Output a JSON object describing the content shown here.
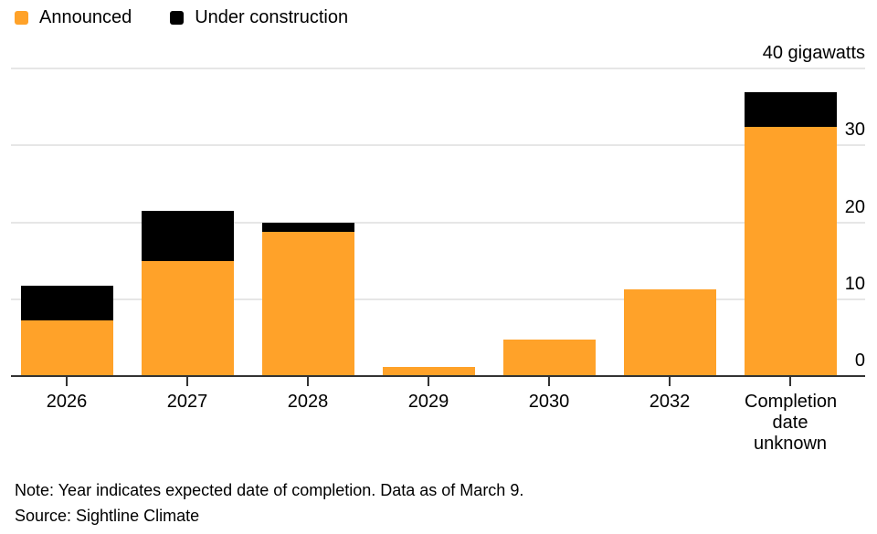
{
  "colors": {
    "announced": "#FFA229",
    "under_construction": "#000000",
    "gridline": "#E6E6E6",
    "axis_line": "#333333",
    "text": "#000000",
    "background": "#FFFFFF"
  },
  "chart_data": {
    "type": "bar",
    "stacked": true,
    "title": "",
    "xlabel": "",
    "ylabel": "gigawatts",
    "grid": true,
    "legend_position": "top-left",
    "categories": [
      "2026",
      "2027",
      "2028",
      "2029",
      "2030",
      "2032",
      "Completion date unknown"
    ],
    "series": [
      {
        "name": "Announced",
        "color": "#FFA229",
        "values": [
          7.2,
          15.0,
          18.7,
          1.2,
          4.7,
          11.3,
          32.4
        ]
      },
      {
        "name": "Under construction",
        "color": "#000000",
        "values": [
          4.5,
          6.5,
          1.3,
          0,
          0,
          0,
          4.5
        ]
      }
    ],
    "ylim": [
      0,
      40
    ],
    "y_axis": {
      "side": "right",
      "ticks": [
        {
          "value": 0,
          "label": "0"
        },
        {
          "value": 10,
          "label": "10"
        },
        {
          "value": 20,
          "label": "20"
        },
        {
          "value": 30,
          "label": "30"
        },
        {
          "value": 40,
          "label": "40 gigawatts"
        }
      ]
    }
  },
  "legend": {
    "items": [
      {
        "label": "Announced",
        "color": "#FFA229"
      },
      {
        "label": "Under construction",
        "color": "#000000"
      }
    ]
  },
  "footer": {
    "note": "Note: Year indicates expected date of completion. Data as of March 9.",
    "source": "Source: Sightline Climate"
  }
}
